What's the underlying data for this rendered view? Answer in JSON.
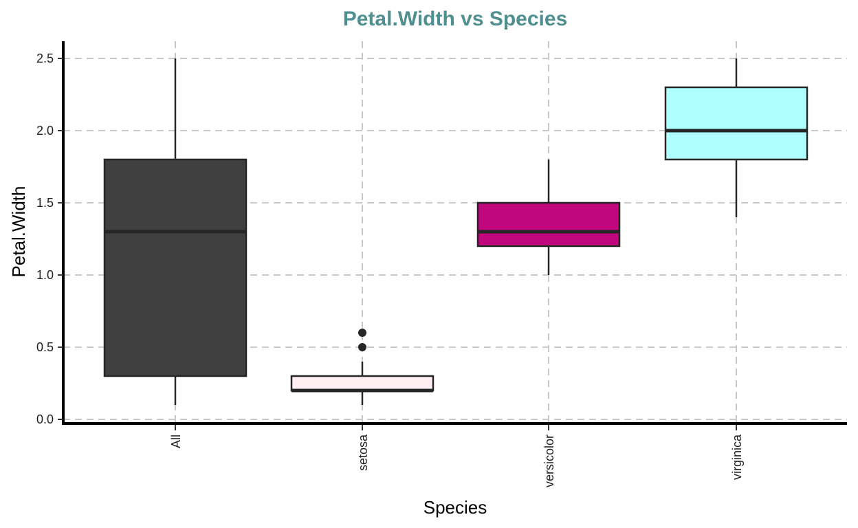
{
  "chart_data": {
    "type": "boxplot",
    "title": "Petal.Width vs Species",
    "xlabel": "Species",
    "ylabel": "Petal.Width",
    "ylim": [
      0,
      2.5
    ],
    "yticks": [
      "0.0",
      "0.5",
      "1.0",
      "1.5",
      "2.0",
      "2.5"
    ],
    "categories": [
      "All",
      "setosa",
      "versicolor",
      "virginica"
    ],
    "grid": true,
    "legend": "none",
    "colors": {
      "title": "#4f8f8f",
      "grid": "#c8c8c8",
      "box_border": "#262626"
    },
    "boxes": [
      {
        "category": "All",
        "whisker_low": 0.1,
        "q1": 0.3,
        "median": 1.3,
        "q3": 1.8,
        "whisker_high": 2.5,
        "outliers": [],
        "fill": "#404040"
      },
      {
        "category": "setosa",
        "whisker_low": 0.1,
        "q1": 0.2,
        "median": 0.2,
        "q3": 0.3,
        "whisker_high": 0.4,
        "outliers": [
          0.5,
          0.6
        ],
        "fill": "#ffeef2"
      },
      {
        "category": "versicolor",
        "whisker_low": 1.0,
        "q1": 1.2,
        "median": 1.3,
        "q3": 1.5,
        "whisker_high": 1.8,
        "outliers": [],
        "fill": "#c0077c"
      },
      {
        "category": "virginica",
        "whisker_low": 1.4,
        "q1": 1.8,
        "median": 2.0,
        "q3": 2.3,
        "whisker_high": 2.5,
        "outliers": [],
        "fill": "#b0ffff"
      }
    ]
  }
}
